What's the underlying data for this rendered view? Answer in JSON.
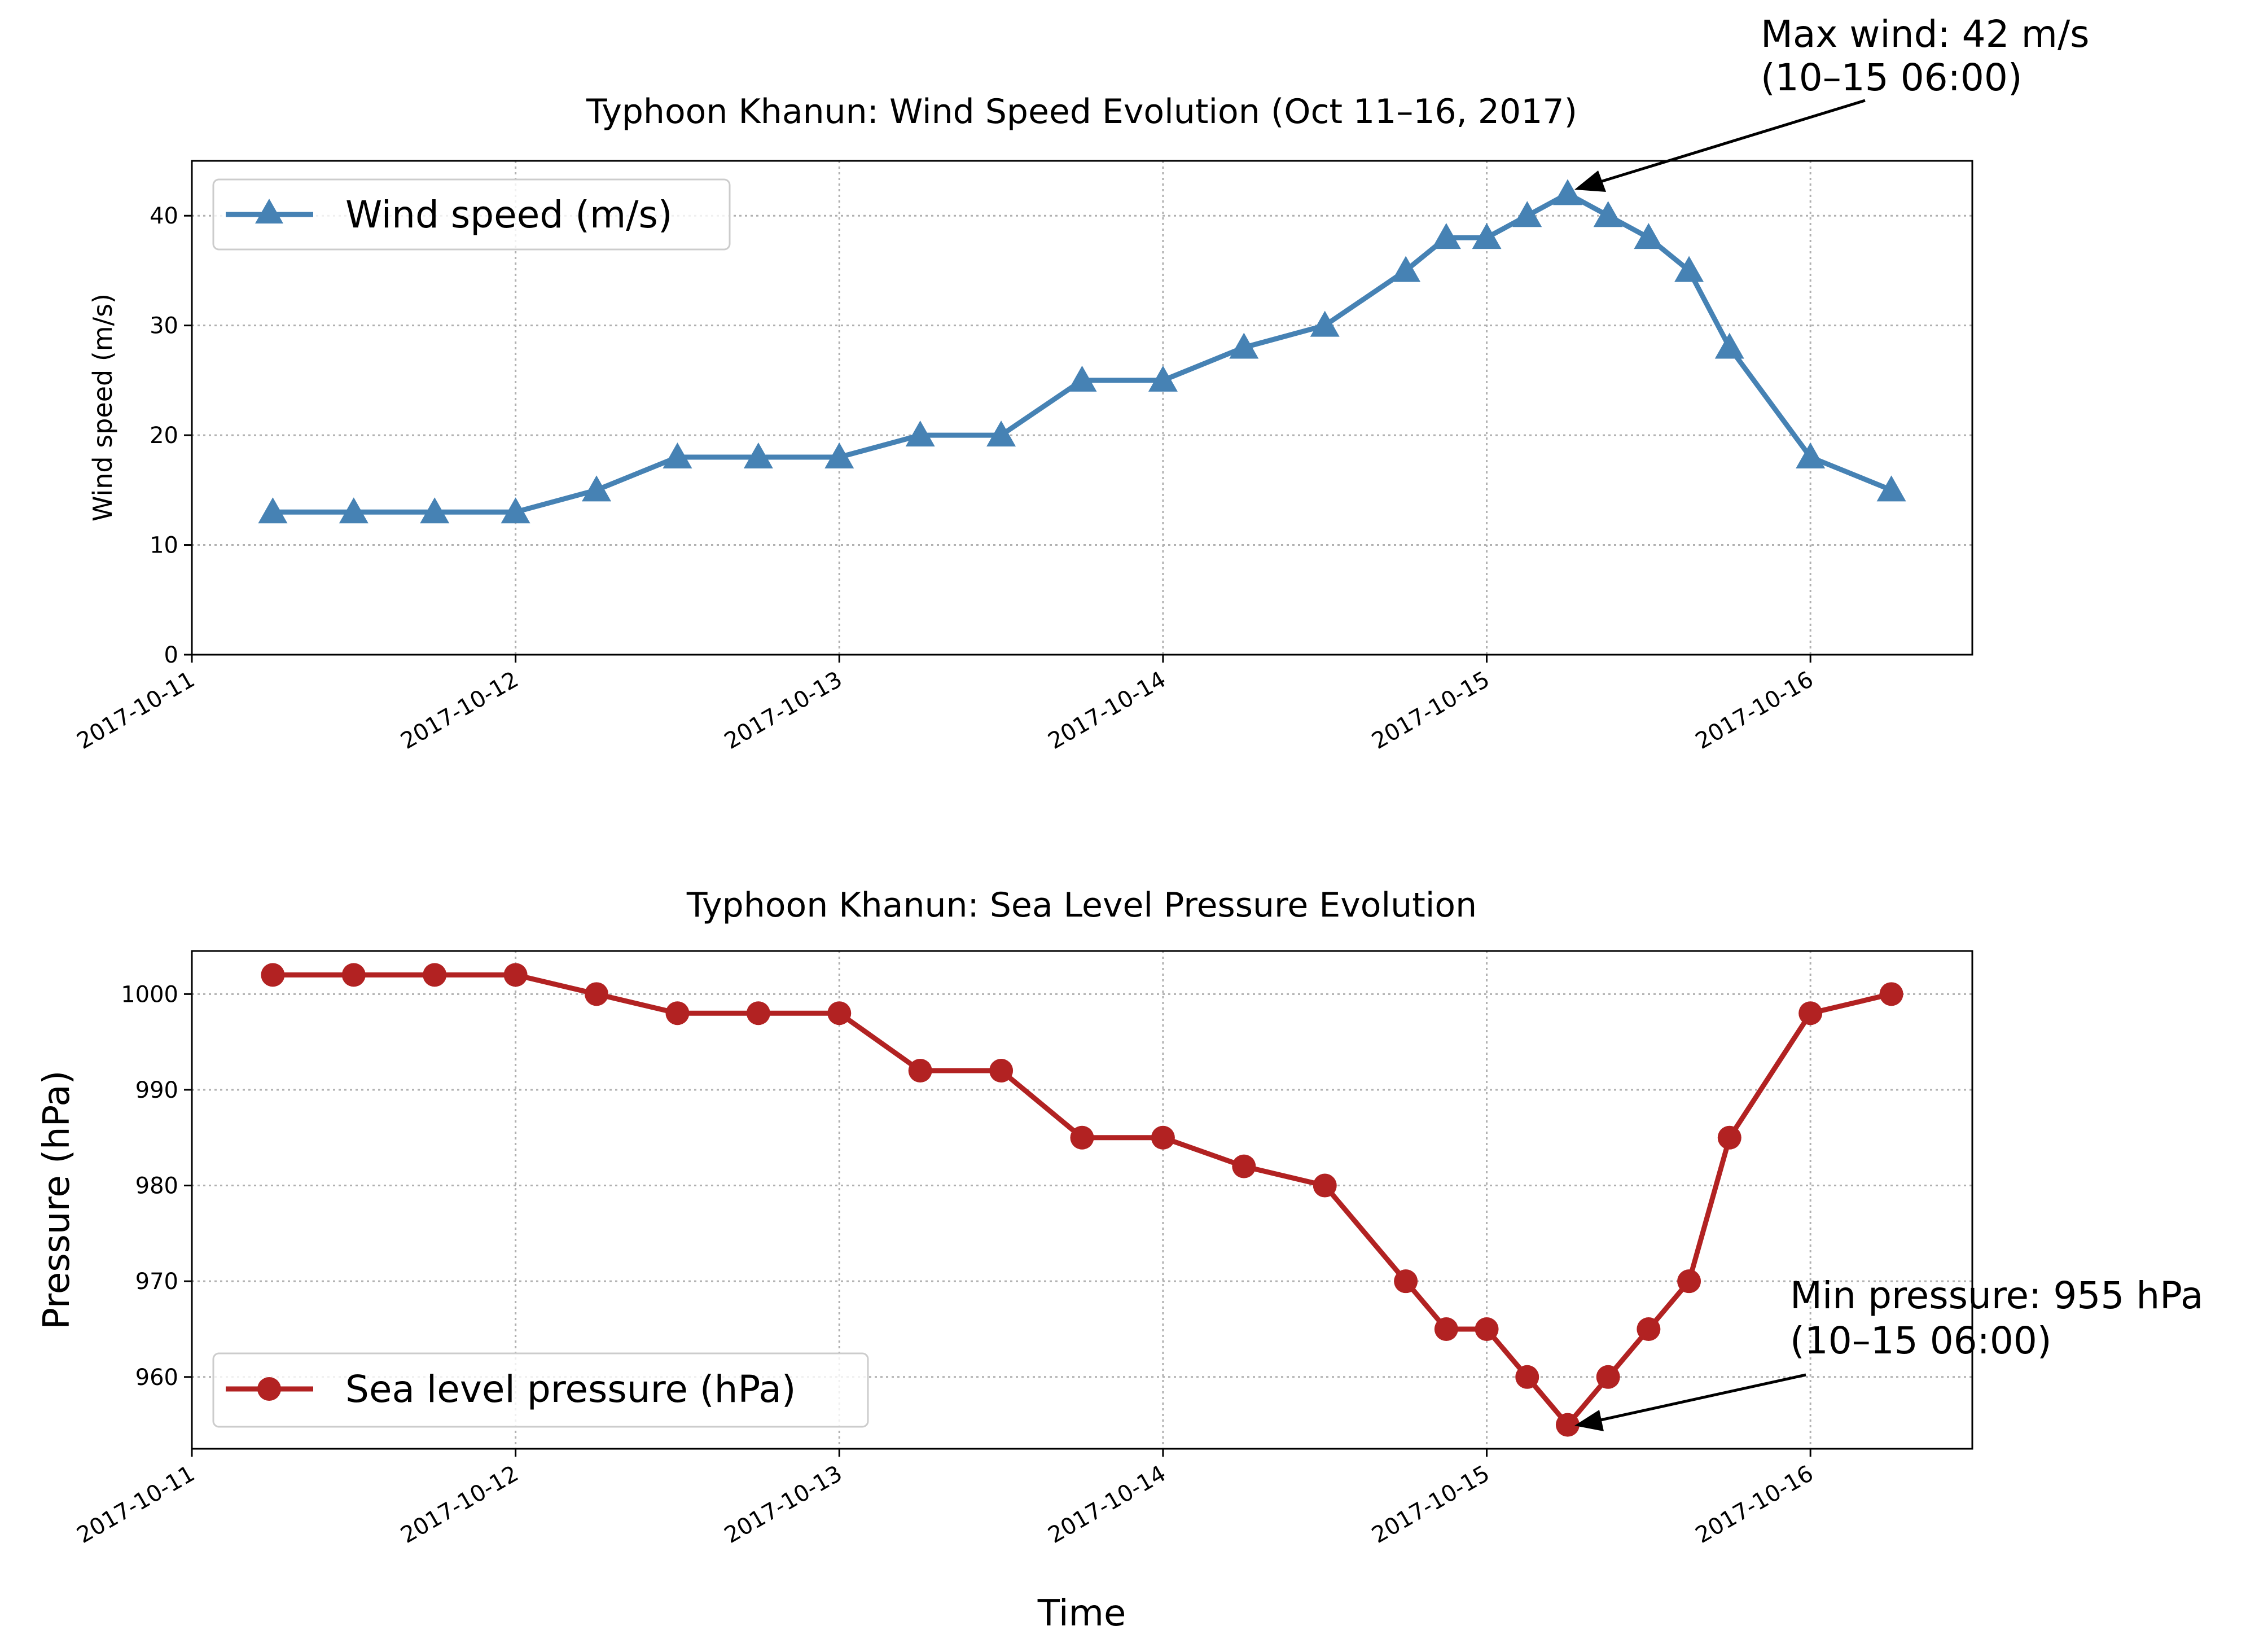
{
  "chart_data": [
    {
      "type": "line",
      "title": "Typhoon Khanun: Wind Speed Evolution (Oct 11–16, 2017)",
      "xlabel": "",
      "ylabel": "Wind speed (m/s)",
      "ylim": [
        0,
        45
      ],
      "yticks": [
        0,
        10,
        20,
        30,
        40
      ],
      "xlim_days": [
        0,
        5.5
      ],
      "xticks": [
        "2017-10-11",
        "2017-10-12",
        "2017-10-13",
        "2017-10-14",
        "2017-10-15",
        "2017-10-16"
      ],
      "grid": true,
      "legend_position": "upper-left",
      "series": [
        {
          "name": "Wind speed (m/s)",
          "color": "#4682b4",
          "marker": "triangle",
          "x_days": [
            0.25,
            0.5,
            0.75,
            1.0,
            1.25,
            1.5,
            1.75,
            2.0,
            2.25,
            2.5,
            2.75,
            3.0,
            3.25,
            3.5,
            3.75,
            3.875,
            4.0,
            4.125,
            4.25,
            4.375,
            4.5,
            4.625,
            4.75,
            5.0,
            5.25
          ],
          "values": [
            13,
            13,
            13,
            13,
            15,
            18,
            18,
            18,
            20,
            20,
            25,
            25,
            28,
            30,
            35,
            38,
            38,
            40,
            42,
            40,
            38,
            35,
            28,
            18,
            15
          ]
        }
      ],
      "annotation": {
        "line1": "Max wind: 42 m/s",
        "line2": "(10–15 06:00)",
        "x_day": 4.25,
        "value": 42
      }
    },
    {
      "type": "line",
      "title": "Typhoon Khanun: Sea Level Pressure Evolution",
      "xlabel": "Time",
      "ylabel": "Pressure (hPa)",
      "ylim": [
        952.5,
        1004.5
      ],
      "yticks": [
        960,
        970,
        980,
        990,
        1000
      ],
      "xlim_days": [
        0,
        5.5
      ],
      "xticks": [
        "2017-10-11",
        "2017-10-12",
        "2017-10-13",
        "2017-10-14",
        "2017-10-15",
        "2017-10-16"
      ],
      "grid": true,
      "legend_position": "lower-left",
      "series": [
        {
          "name": "Sea level pressure (hPa)",
          "color": "#b22222",
          "marker": "circle",
          "x_days": [
            0.25,
            0.5,
            0.75,
            1.0,
            1.25,
            1.5,
            1.75,
            2.0,
            2.25,
            2.5,
            2.75,
            3.0,
            3.25,
            3.5,
            3.75,
            3.875,
            4.0,
            4.125,
            4.25,
            4.375,
            4.5,
            4.625,
            4.75,
            5.0,
            5.25
          ],
          "values": [
            1002,
            1002,
            1002,
            1002,
            1000,
            998,
            998,
            998,
            992,
            992,
            985,
            985,
            982,
            980,
            970,
            965,
            965,
            960,
            955,
            960,
            965,
            970,
            985,
            998,
            1000
          ]
        }
      ],
      "annotation": {
        "line1": "Min pressure: 955 hPa",
        "line2": "(10–15 06:00)",
        "x_day": 4.25,
        "value": 955
      }
    }
  ]
}
